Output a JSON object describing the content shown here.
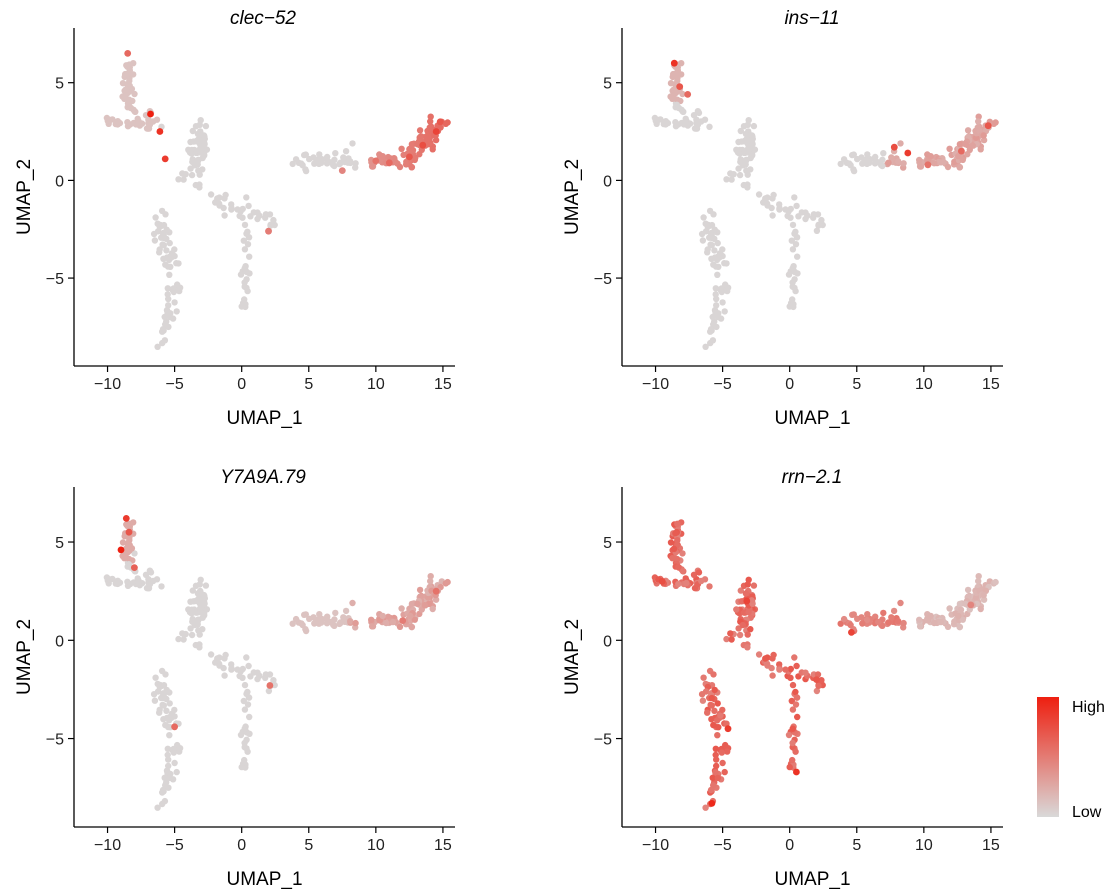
{
  "chart_data": [
    {
      "type": "scatter",
      "title": "clec−52",
      "xlabel": "UMAP_1",
      "ylabel": "UMAP_2",
      "xlim": [
        -12.5,
        15.9
      ],
      "ylim": [
        -9.5,
        7.8
      ],
      "xticks": [
        -10,
        -5,
        0,
        5,
        10,
        15
      ],
      "xtick_labels": [
        "−10",
        "−5",
        "0",
        "5",
        "10",
        "15"
      ],
      "yticks": [
        -5,
        0,
        5
      ],
      "ytick_labels": [
        "−5",
        "0",
        "5"
      ],
      "points": [
        {
          "x": 14.5,
          "y": 2.5,
          "expression": 0.8
        },
        {
          "x": 13.5,
          "y": 1.8,
          "expression": 0.75
        },
        {
          "x": 12.5,
          "y": 1.2,
          "expression": 0.7
        },
        {
          "x": 11.0,
          "y": 0.9,
          "expression": 0.6
        },
        {
          "x": 10.0,
          "y": 1.0,
          "expression": 0.55
        },
        {
          "x": 14.8,
          "y": 3.0,
          "expression": 0.7
        },
        {
          "x": -6.8,
          "y": 3.4,
          "expression": 1.0
        },
        {
          "x": -6.1,
          "y": 2.5,
          "expression": 0.9
        },
        {
          "x": -5.7,
          "y": 1.1,
          "expression": 0.85
        },
        {
          "x": -8.5,
          "y": 6.5,
          "expression": 0.6
        },
        {
          "x": 2.0,
          "y": -2.6,
          "expression": 0.5
        },
        {
          "x": 7.5,
          "y": 0.5,
          "expression": 0.45
        }
      ]
    },
    {
      "type": "scatter",
      "title": "ins−11",
      "xlabel": "UMAP_1",
      "ylabel": "UMAP_2",
      "xlim": [
        -12.5,
        15.9
      ],
      "ylim": [
        -9.5,
        7.8
      ],
      "xticks": [
        -10,
        -5,
        0,
        5,
        10,
        15
      ],
      "xtick_labels": [
        "−10",
        "−5",
        "0",
        "5",
        "10",
        "15"
      ],
      "yticks": [
        -5,
        0,
        5
      ],
      "ytick_labels": [
        "−5",
        "0",
        "5"
      ],
      "points": [
        {
          "x": -8.6,
          "y": 6.0,
          "expression": 0.9
        },
        {
          "x": -8.2,
          "y": 4.8,
          "expression": 0.7
        },
        {
          "x": -7.6,
          "y": 4.4,
          "expression": 0.6
        },
        {
          "x": 7.8,
          "y": 1.7,
          "expression": 0.75
        },
        {
          "x": 8.8,
          "y": 1.4,
          "expression": 0.85
        },
        {
          "x": 14.8,
          "y": 2.8,
          "expression": 0.7
        },
        {
          "x": 12.8,
          "y": 1.5,
          "expression": 0.6
        },
        {
          "x": 10.3,
          "y": 0.8,
          "expression": 0.55
        }
      ]
    },
    {
      "type": "scatter",
      "title": "Y7A9A.79",
      "xlabel": "UMAP_1",
      "ylabel": "UMAP_2",
      "xlim": [
        -12.5,
        15.9
      ],
      "ylim": [
        -9.5,
        7.8
      ],
      "xticks": [
        -10,
        -5,
        0,
        5,
        10,
        15
      ],
      "xtick_labels": [
        "−10",
        "−5",
        "0",
        "5",
        "10",
        "15"
      ],
      "yticks": [
        -5,
        0,
        5
      ],
      "ytick_labels": [
        "−5",
        "0",
        "5"
      ],
      "points": [
        {
          "x": -9.0,
          "y": 4.6,
          "expression": 1.0
        },
        {
          "x": -8.6,
          "y": 6.2,
          "expression": 0.85
        },
        {
          "x": -8.4,
          "y": 5.5,
          "expression": 0.7
        },
        {
          "x": -8.0,
          "y": 3.7,
          "expression": 0.65
        },
        {
          "x": 14.5,
          "y": 2.5,
          "expression": 0.55
        },
        {
          "x": 12.0,
          "y": 1.0,
          "expression": 0.5
        },
        {
          "x": -5.0,
          "y": -4.4,
          "expression": 0.6
        },
        {
          "x": 2.1,
          "y": -2.3,
          "expression": 0.55
        }
      ]
    },
    {
      "type": "scatter",
      "title": "rrn−2.1",
      "xlabel": "UMAP_1",
      "ylabel": "UMAP_2",
      "xlim": [
        -12.5,
        15.9
      ],
      "ylim": [
        -9.5,
        7.8
      ],
      "xticks": [
        -10,
        -5,
        0,
        5,
        10,
        15
      ],
      "xtick_labels": [
        "−10",
        "−5",
        "0",
        "5",
        "10",
        "15"
      ],
      "yticks": [
        -5,
        0,
        5
      ],
      "ytick_labels": [
        "−5",
        "0",
        "5"
      ],
      "points": [
        {
          "x": -5.8,
          "y": -8.3,
          "expression": 0.95
        },
        {
          "x": -4.6,
          "y": -4.5,
          "expression": 0.85
        },
        {
          "x": -3.2,
          "y": 2.0,
          "expression": 0.8
        },
        {
          "x": -9.5,
          "y": 3.0,
          "expression": 0.75
        },
        {
          "x": 0.5,
          "y": -6.7,
          "expression": 0.9
        },
        {
          "x": 4.6,
          "y": 0.4,
          "expression": 0.8
        },
        {
          "x": 2.0,
          "y": -2.0,
          "expression": 0.7
        },
        {
          "x": 13.5,
          "y": 1.8,
          "expression": 0.45
        }
      ]
    }
  ],
  "legend": {
    "high_label": "High",
    "low_label": "Low",
    "high_color": "#ee1f10",
    "low_color": "#d9d9d9",
    "placement": "right"
  },
  "colors": {
    "low": "#d9d9d9",
    "high": "#ee1f10"
  }
}
